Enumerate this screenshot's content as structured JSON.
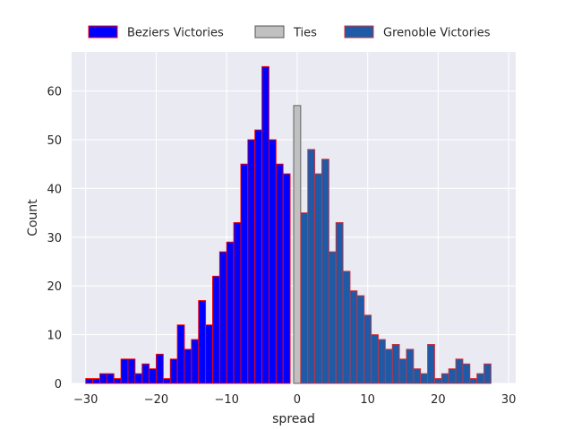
{
  "chart_data": {
    "type": "bar",
    "xlabel": "spread",
    "ylabel": "Count",
    "xlim": [
      -32,
      31
    ],
    "ylim": [
      0,
      68
    ],
    "x_ticks": [
      -30,
      -20,
      -10,
      0,
      10,
      20,
      30
    ],
    "y_ticks": [
      0,
      10,
      20,
      30,
      40,
      50,
      60
    ],
    "grid": true,
    "legend_position": "top-center",
    "bin_width": 1,
    "series": [
      {
        "name": "Beziers Victories",
        "fill": "#0000ff",
        "edge": "#ff0000",
        "bins": [
          {
            "x": -30,
            "value": 1
          },
          {
            "x": -29,
            "value": 1
          },
          {
            "x": -28,
            "value": 2
          },
          {
            "x": -27,
            "value": 2
          },
          {
            "x": -26,
            "value": 1
          },
          {
            "x": -25,
            "value": 5
          },
          {
            "x": -24,
            "value": 5
          },
          {
            "x": -23,
            "value": 2
          },
          {
            "x": -22,
            "value": 4
          },
          {
            "x": -21,
            "value": 3
          },
          {
            "x": -20,
            "value": 6
          },
          {
            "x": -19,
            "value": 1
          },
          {
            "x": -18,
            "value": 5
          },
          {
            "x": -17,
            "value": 12
          },
          {
            "x": -16,
            "value": 7
          },
          {
            "x": -15,
            "value": 9
          },
          {
            "x": -14,
            "value": 17
          },
          {
            "x": -13,
            "value": 12
          },
          {
            "x": -12,
            "value": 22
          },
          {
            "x": -11,
            "value": 27
          },
          {
            "x": -10,
            "value": 29
          },
          {
            "x": -9,
            "value": 33
          },
          {
            "x": -8,
            "value": 45
          },
          {
            "x": -7,
            "value": 50
          },
          {
            "x": -6,
            "value": 52
          },
          {
            "x": -5,
            "value": 65
          },
          {
            "x": -4,
            "value": 50
          },
          {
            "x": -3,
            "value": 45
          },
          {
            "x": -2,
            "value": 43
          }
        ]
      },
      {
        "name": "Ties",
        "fill": "#c0c0c0",
        "edge": "#555555",
        "bins": [
          {
            "x": -0.5,
            "value": 57
          }
        ]
      },
      {
        "name": "Grenoble Victories",
        "fill": "#1f5aa6",
        "edge": "#d0303a",
        "bins": [
          {
            "x": 0.5,
            "value": 35
          },
          {
            "x": 1.5,
            "value": 48
          },
          {
            "x": 2.5,
            "value": 43
          },
          {
            "x": 3.5,
            "value": 46
          },
          {
            "x": 4.5,
            "value": 27
          },
          {
            "x": 5.5,
            "value": 33
          },
          {
            "x": 6.5,
            "value": 23
          },
          {
            "x": 7.5,
            "value": 19
          },
          {
            "x": 8.5,
            "value": 18
          },
          {
            "x": 9.5,
            "value": 14
          },
          {
            "x": 10.5,
            "value": 10
          },
          {
            "x": 11.5,
            "value": 9
          },
          {
            "x": 12.5,
            "value": 7
          },
          {
            "x": 13.5,
            "value": 8
          },
          {
            "x": 14.5,
            "value": 5
          },
          {
            "x": 15.5,
            "value": 7
          },
          {
            "x": 16.5,
            "value": 3
          },
          {
            "x": 17.5,
            "value": 2
          },
          {
            "x": 18.5,
            "value": 8
          },
          {
            "x": 19.5,
            "value": 1
          },
          {
            "x": 20.5,
            "value": 2
          },
          {
            "x": 21.5,
            "value": 3
          },
          {
            "x": 22.5,
            "value": 5
          },
          {
            "x": 23.5,
            "value": 4
          },
          {
            "x": 24.5,
            "value": 1
          },
          {
            "x": 25.5,
            "value": 2
          },
          {
            "x": 26.5,
            "value": 4
          }
        ]
      }
    ]
  }
}
